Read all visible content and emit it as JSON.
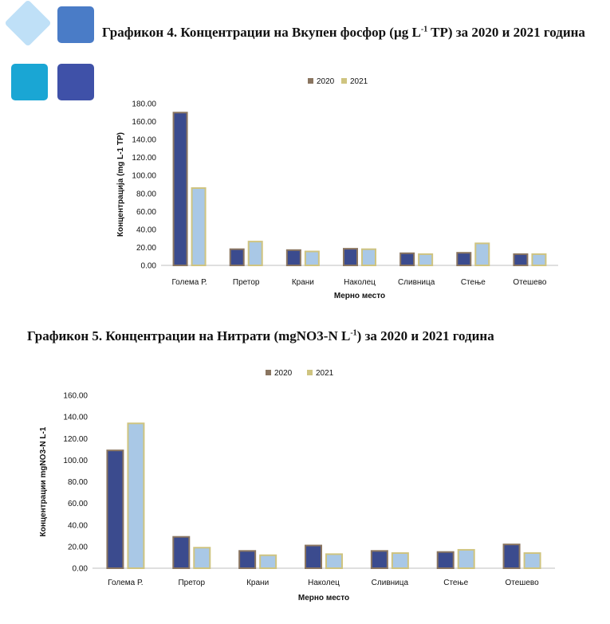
{
  "logo": {
    "colors": [
      "#bfe0f7",
      "#4a7cc7",
      "#1aa6d4",
      "#3f51a8"
    ]
  },
  "captions": {
    "chart4": {
      "prefix": "Графикон 4. Концентрации на Вкупен фосфор (µg L",
      "sup": "-1",
      "suffix": " TP) за 2020 и 2021 година"
    },
    "chart5": {
      "prefix": "Графикон 5. Концентрации на Нитрати (mgNO3-N L",
      "sup": "-1",
      "suffix": ") за 2020 и 2021 година"
    }
  },
  "colors": {
    "s2020_fill": "#3b4b8e",
    "s2020_edge": "#8a7560",
    "s2021_fill": "#a9c8e6",
    "s2021_edge": "#cfc480",
    "axis": "#bfbfbf"
  },
  "chart_data": [
    {
      "type": "bar",
      "categories": [
        "Голема Р.",
        "Претор",
        "Крани",
        "Наколец",
        "Сливница",
        "Стење",
        "Отешево"
      ],
      "series": [
        {
          "name": "2020",
          "values": [
            170,
            18,
            17,
            18.5,
            13.5,
            14,
            12.5
          ]
        },
        {
          "name": "2021",
          "values": [
            86,
            26.5,
            15.5,
            18,
            12.5,
            24.5,
            12.5
          ]
        }
      ],
      "ylim": [
        0,
        180
      ],
      "yticks": [
        "0.00",
        "20.00",
        "40.00",
        "60.00",
        "80.00",
        "100.00",
        "120.00",
        "140.00",
        "160.00",
        "180.00"
      ],
      "xlabel": "Мерно место",
      "ylabel": "Концентрација (mg L-1 TP)",
      "legend": "top-center",
      "grid": false
    },
    {
      "type": "bar",
      "categories": [
        "Голема Р.",
        "Претор",
        "Крани",
        "Наколец",
        "Сливница",
        "Стење",
        "Отешево"
      ],
      "series": [
        {
          "name": "2020",
          "values": [
            109,
            29,
            16,
            21,
            16,
            15,
            22
          ]
        },
        {
          "name": "2021",
          "values": [
            134,
            19,
            12,
            13,
            14,
            17,
            14
          ]
        }
      ],
      "ylim": [
        0,
        160
      ],
      "yticks": [
        "0.00",
        "20.00",
        "40.00",
        "60.00",
        "80.00",
        "100.00",
        "120.00",
        "140.00",
        "160.00"
      ],
      "xlabel": "Мерно место",
      "ylabel": "Концентрации mgNO3-N L-1",
      "legend": "top-center",
      "grid": false
    }
  ]
}
